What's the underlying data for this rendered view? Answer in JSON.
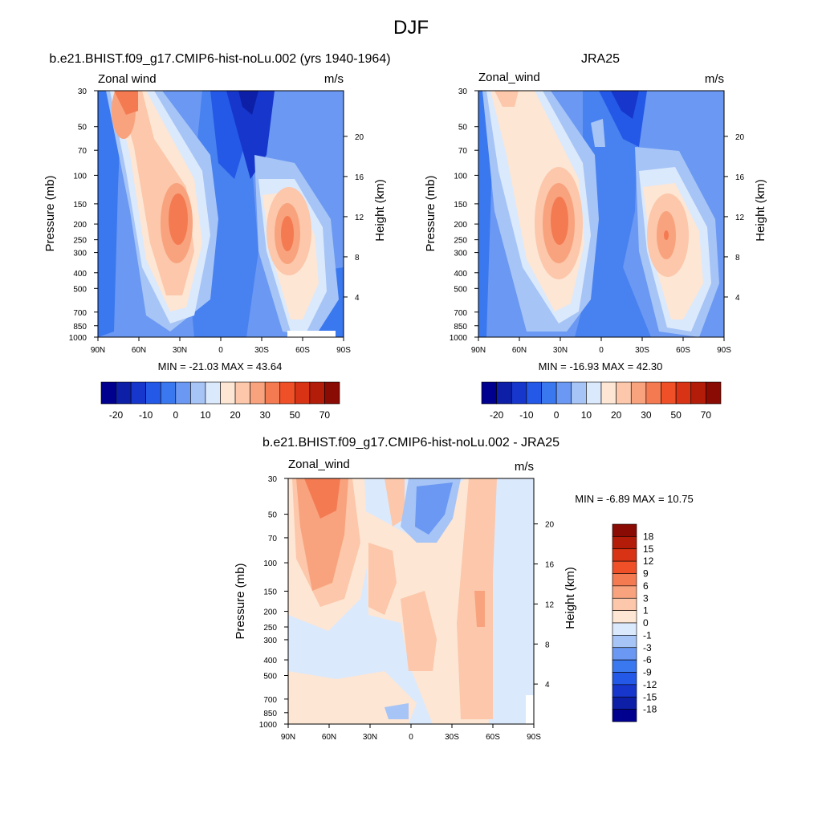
{
  "figure_title": "DJF",
  "colors": {
    "abs_scale": [
      "#00008f",
      "#0d1fa6",
      "#1636cc",
      "#2458e6",
      "#3a78ef",
      "#6a98f2",
      "#a6c4f6",
      "#dbe9fc",
      "#fde6d4",
      "#fcc7aa",
      "#f8a37e",
      "#f47a52",
      "#ef5028",
      "#d73314",
      "#b21c08",
      "#8a0a04"
    ],
    "diff_scale": [
      "#00008f",
      "#0d1fa6",
      "#1636cc",
      "#2458e6",
      "#3a78ef",
      "#6a98f2",
      "#a6c4f6",
      "#dbe9fc",
      "#fde6d4",
      "#fcc7aa",
      "#f8a37e",
      "#f47a52",
      "#ef5028",
      "#d73314",
      "#b21c08",
      "#8a0a04"
    ]
  },
  "panels": [
    {
      "title": "b.e21.BHIST.f09_g17.CMIP6-hist-noLu.002 (yrs 1940-1964)",
      "left_label": "Zonal wind",
      "right_label": "m/s",
      "minmax": "MIN = -21.03  MAX =  43.64"
    },
    {
      "title": "JRA25",
      "left_label": "Zonal_wind",
      "right_label": "m/s",
      "minmax": "MIN = -16.93  MAX =  42.30"
    },
    {
      "title": "b.e21.BHIST.f09_g17.CMIP6-hist-noLu.002 - JRA25",
      "left_label": "Zonal_wind",
      "right_label": "m/s",
      "minmax": "MIN =  -6.89  MAX =  10.75"
    }
  ],
  "axes": {
    "ylabel": "Pressure (mb)",
    "y2label": "Height (km)",
    "x_ticks": [
      "90N",
      "60N",
      "30N",
      "0",
      "30S",
      "60S",
      "90S"
    ],
    "y_ticks": [
      "30",
      "50",
      "70",
      "100",
      "150",
      "200",
      "250",
      "300",
      "400",
      "500",
      "700",
      "850",
      "1000"
    ],
    "y2_ticks": [
      "20",
      "16",
      "12",
      "8",
      "4"
    ]
  },
  "colorbar_abs_labels": [
    "-20",
    "-10",
    "0",
    "10",
    "20",
    "30",
    "50",
    "70"
  ],
  "colorbar_diff_labels": [
    "18",
    "15",
    "12",
    "9",
    "6",
    "3",
    "1",
    "0",
    "-1",
    "-3",
    "-6",
    "-9",
    "-12",
    "-15",
    "-18"
  ],
  "chart_data": [
    {
      "type": "heatmap",
      "title": "b.e21.BHIST.f09_g17.CMIP6-hist-noLu.002 (yrs 1940-1964)",
      "variable": "Zonal wind",
      "units": "m/s",
      "xlabel": "",
      "ylabel": "Pressure (mb)",
      "y2label": "Height (km)",
      "x_range": [
        90,
        -90
      ],
      "y_range": [
        1000,
        30
      ],
      "y_scale": "log",
      "min": -21.03,
      "max": 43.64,
      "features": [
        {
          "kind": "jet",
          "lat": 29,
          "p": 200,
          "value": 40
        },
        {
          "kind": "jet",
          "lat": -46,
          "p": 250,
          "value": 35
        },
        {
          "kind": "jet",
          "lat": 66,
          "p": 30,
          "value": 30
        },
        {
          "kind": "easterly",
          "lat": 10,
          "p": 30,
          "value": -21
        }
      ],
      "levels": [
        -20,
        -10,
        0,
        10,
        20,
        30,
        50,
        70
      ]
    },
    {
      "type": "heatmap",
      "title": "JRA25",
      "variable": "Zonal_wind",
      "units": "m/s",
      "xlabel": "",
      "ylabel": "Pressure (mb)",
      "y2label": "Height (km)",
      "x_range": [
        90,
        -90
      ],
      "y_range": [
        1000,
        30
      ],
      "y_scale": "log",
      "min": -16.93,
      "max": 42.3,
      "features": [
        {
          "kind": "jet",
          "lat": 30,
          "p": 200,
          "value": 40
        },
        {
          "kind": "jet",
          "lat": -46,
          "p": 250,
          "value": 32
        },
        {
          "kind": "jet",
          "lat": 70,
          "p": 30,
          "value": 15
        },
        {
          "kind": "easterly",
          "lat": 10,
          "p": 30,
          "value": -17
        }
      ],
      "levels": [
        -20,
        -10,
        0,
        10,
        20,
        30,
        50,
        70
      ]
    },
    {
      "type": "heatmap",
      "title": "b.e21.BHIST.f09_g17.CMIP6-hist-noLu.002 - JRA25",
      "variable": "Zonal_wind",
      "units": "m/s",
      "xlabel": "",
      "ylabel": "Pressure (mb)",
      "y2label": "Height (km)",
      "x_range": [
        90,
        -90
      ],
      "y_range": [
        1000,
        30
      ],
      "y_scale": "log",
      "min": -6.89,
      "max": 10.75,
      "features": [
        {
          "kind": "positive",
          "lat": 68,
          "p": 30,
          "value": 10
        },
        {
          "kind": "negative",
          "lat": 0,
          "p": 50,
          "value": -6
        },
        {
          "kind": "positive",
          "lat": -50,
          "p": 150,
          "value": 4
        }
      ],
      "levels": [
        -18,
        -15,
        -12,
        -9,
        -6,
        -3,
        -1,
        0,
        1,
        3,
        6,
        9,
        12,
        15,
        18
      ]
    }
  ]
}
